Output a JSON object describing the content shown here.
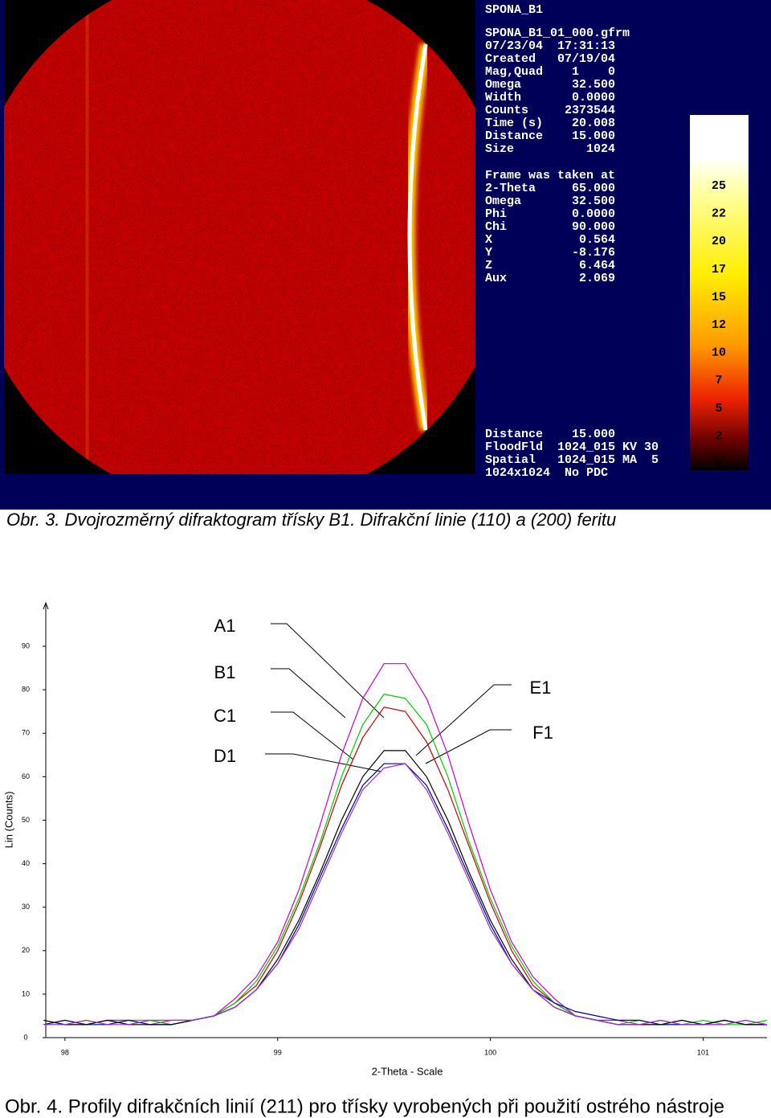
{
  "figure1": {
    "panel_lines": [
      "SPONA_B1",
      "SPONA_B1_01_000.gfrm",
      "07/23/04  17:31:13",
      "Created   07/19/04",
      "Mag,Quad    1    0",
      "Omega       32.500",
      "Width       0.0000",
      "Counts     2373544",
      "Time (s)    20.008",
      "Distance    15.000",
      "Size          1024",
      "Frame was taken at",
      "2-Theta     65.000",
      "Omega       32.500",
      "Phi         0.0000",
      "Chi         90.000",
      "X            0.564",
      "Y           -8.176",
      "Z            6.464",
      "Aux          2.069",
      "Distance    15.000",
      "FloodFld  1024_015 KV 30",
      "Spatial   1024_015 MA  5",
      "1024x1024  No PDC"
    ],
    "scale_labels": [
      "25",
      "22",
      "20",
      "17",
      "15",
      "12",
      "10",
      "7",
      "5",
      "2",
      "0"
    ]
  },
  "caption1": "Obr. 3. Dvojrozměrný difraktogram třísky B1. Difrakční linie (110) a (200) feritu",
  "chart_data": {
    "type": "line",
    "xlabel": "2-Theta - Scale",
    "ylabel": "Lin (Counts)",
    "x": [
      97.9,
      98.0,
      98.1,
      98.2,
      98.3,
      98.4,
      98.5,
      98.6,
      98.7,
      98.8,
      98.9,
      99.0,
      99.1,
      99.2,
      99.3,
      99.4,
      99.5,
      99.6,
      99.7,
      99.8,
      99.9,
      100.0,
      100.1,
      100.2,
      100.3,
      100.4,
      100.5,
      100.6,
      100.7,
      100.8,
      100.9,
      101.0,
      101.1,
      101.2,
      101.3
    ],
    "series": [
      {
        "name": "A1",
        "color": "#cc0000",
        "values": [
          3,
          4,
          3,
          4,
          3,
          4,
          3,
          4,
          5,
          8,
          12,
          20,
          31,
          44,
          58,
          69,
          76,
          75,
          68,
          57,
          44,
          31,
          20,
          12,
          8,
          5,
          4,
          3,
          3,
          4,
          3,
          3,
          4,
          3,
          3
        ]
      },
      {
        "name": "B1",
        "color": "#cc00cc",
        "values": [
          4,
          3,
          3,
          4,
          4,
          3,
          4,
          4,
          5,
          9,
          14,
          22,
          34,
          49,
          65,
          78,
          86,
          86,
          78,
          65,
          49,
          34,
          22,
          14,
          9,
          5,
          4,
          4,
          3,
          3,
          4,
          3,
          3,
          4,
          3
        ]
      },
      {
        "name": "C1",
        "color": "#00cc00",
        "values": [
          3,
          3,
          4,
          3,
          4,
          4,
          3,
          4,
          5,
          8,
          13,
          21,
          32,
          45,
          60,
          72,
          79,
          78,
          72,
          60,
          45,
          32,
          21,
          13,
          8,
          5,
          4,
          3,
          4,
          3,
          3,
          4,
          3,
          3,
          4
        ]
      },
      {
        "name": "D1",
        "color": "#000099",
        "values": [
          3,
          4,
          3,
          3,
          4,
          3,
          3,
          4,
          5,
          7,
          11,
          17,
          26,
          37,
          48,
          58,
          63,
          63,
          58,
          48,
          37,
          26,
          17,
          11,
          8,
          6,
          5,
          4,
          4,
          3,
          3,
          3,
          4,
          3,
          3
        ]
      },
      {
        "name": "E1",
        "color": "#000000",
        "values": [
          4,
          3,
          3,
          4,
          3,
          3,
          3,
          4,
          5,
          7,
          11,
          18,
          27,
          38,
          50,
          60,
          66,
          66,
          60,
          50,
          38,
          27,
          18,
          11,
          7,
          5,
          4,
          3,
          3,
          3,
          4,
          3,
          4,
          3,
          3
        ]
      },
      {
        "name": "F1",
        "color": "#9933cc",
        "values": [
          3,
          3,
          4,
          3,
          3,
          4,
          4,
          4,
          5,
          7,
          11,
          17,
          25,
          36,
          47,
          57,
          62,
          63,
          57,
          47,
          36,
          25,
          17,
          11,
          7,
          5,
          4,
          3,
          3,
          4,
          3,
          3,
          3,
          4,
          3
        ]
      }
    ],
    "xlim": [
      97.91,
      101.3
    ],
    "xticks": [
      98,
      99,
      100,
      101
    ],
    "ylim": [
      0,
      100
    ],
    "yticks": [
      0,
      10,
      20,
      30,
      40,
      50,
      60,
      70,
      80,
      90
    ]
  },
  "caption2": "Obr. 4. Profily difrakčních linií (211) pro třísky vyrobených při použití ostrého nástroje"
}
